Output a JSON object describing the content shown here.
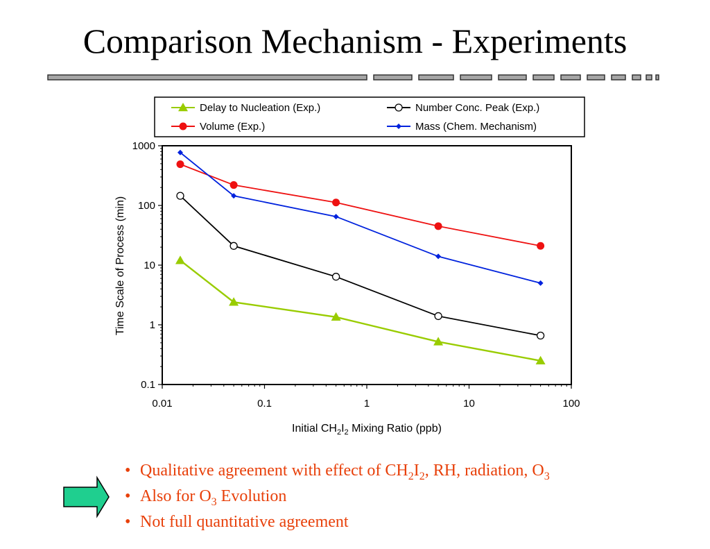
{
  "slide": {
    "title": "Comparison Mechanism - Experiments",
    "bullets": [
      {
        "parts": [
          "Qualitative agreement with effect of CH",
          "2",
          "I",
          "2",
          ", RH, radiation, O",
          "3",
          ""
        ]
      },
      {
        "parts": [
          "Also for O",
          "3",
          " Evolution"
        ]
      },
      {
        "parts": [
          "Not full quantitative agreement"
        ]
      }
    ],
    "bullet_color": "#e8400a",
    "arrow_color": "#1fcf8f",
    "arrow_icon": "right-arrow-icon"
  },
  "chart_data": {
    "type": "line",
    "x_scale": "log",
    "y_scale": "log",
    "xlim": [
      0.01,
      100
    ],
    "ylim": [
      0.1,
      1000
    ],
    "x_ticks": [
      "0.01",
      "0.1",
      "1",
      "10",
      "100"
    ],
    "y_ticks": [
      "0.1",
      "1",
      "10",
      "100",
      "1000"
    ],
    "ylabel": "Time Scale of Process (min)",
    "xlabel_parts": [
      "Initial CH",
      "2",
      "I",
      "2",
      " Mixing Ratio (ppb)"
    ],
    "legend_position": "top",
    "grid": false,
    "series": [
      {
        "name": "Delay to Nucleation (Exp.)",
        "color": "#99cc00",
        "marker": "triangle",
        "x": [
          0.015,
          0.05,
          0.5,
          5,
          50
        ],
        "y": [
          12,
          2.4,
          1.35,
          0.52,
          0.25
        ]
      },
      {
        "name": "Number Conc. Peak (Exp.)",
        "color": "#000000",
        "marker": "open-circle",
        "x": [
          0.015,
          0.05,
          0.5,
          5,
          50
        ],
        "y": [
          145,
          21,
          6.4,
          1.4,
          0.66
        ]
      },
      {
        "name": "Volume (Exp.)",
        "color": "#ee1111",
        "marker": "filled-circle",
        "x": [
          0.015,
          0.05,
          0.5,
          5,
          50
        ],
        "y": [
          490,
          220,
          112,
          45,
          21
        ]
      },
      {
        "name": "Mass (Chem. Mechanism)",
        "color": "#0022dd",
        "marker": "diamond",
        "x": [
          0.015,
          0.05,
          0.5,
          5,
          50
        ],
        "y": [
          770,
          145,
          65,
          14,
          5
        ]
      }
    ]
  }
}
